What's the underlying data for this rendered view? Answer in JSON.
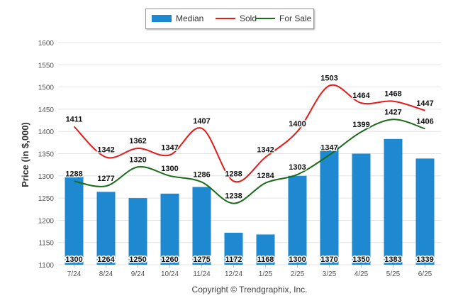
{
  "chart_data": {
    "type": "bar",
    "categories": [
      "7/24",
      "8/24",
      "9/24",
      "10/24",
      "11/24",
      "12/24",
      "1/25",
      "2/25",
      "3/25",
      "4/25",
      "5/25",
      "6/25"
    ],
    "series": [
      {
        "name": "Median",
        "type": "bar",
        "color": "#1e88d0",
        "values": [
          1300,
          1264,
          1250,
          1260,
          1275,
          1172,
          1168,
          1300,
          1370,
          1350,
          1383,
          1339
        ]
      },
      {
        "name": "Sold",
        "type": "line",
        "color": "#e31b1b",
        "values": [
          1411,
          1342,
          1362,
          1347,
          1407,
          1288,
          1342,
          1400,
          1503,
          1464,
          1468,
          1447
        ]
      },
      {
        "name": "For Sale",
        "type": "line",
        "color": "#1a6b1a",
        "values": [
          1288,
          1277,
          1320,
          1300,
          1286,
          1238,
          1284,
          1303,
          1347,
          1399,
          1427,
          1406
        ]
      }
    ],
    "ylabel": "Price (in $,000)",
    "xlabel": "",
    "ylim": [
      1100,
      1600
    ],
    "yticks": [
      1100,
      1150,
      1200,
      1250,
      1300,
      1350,
      1400,
      1450,
      1500,
      1550,
      1600
    ],
    "grid": true,
    "legend_position": "top-center"
  },
  "copyright": "Copyright © Trendgraphix, Inc."
}
